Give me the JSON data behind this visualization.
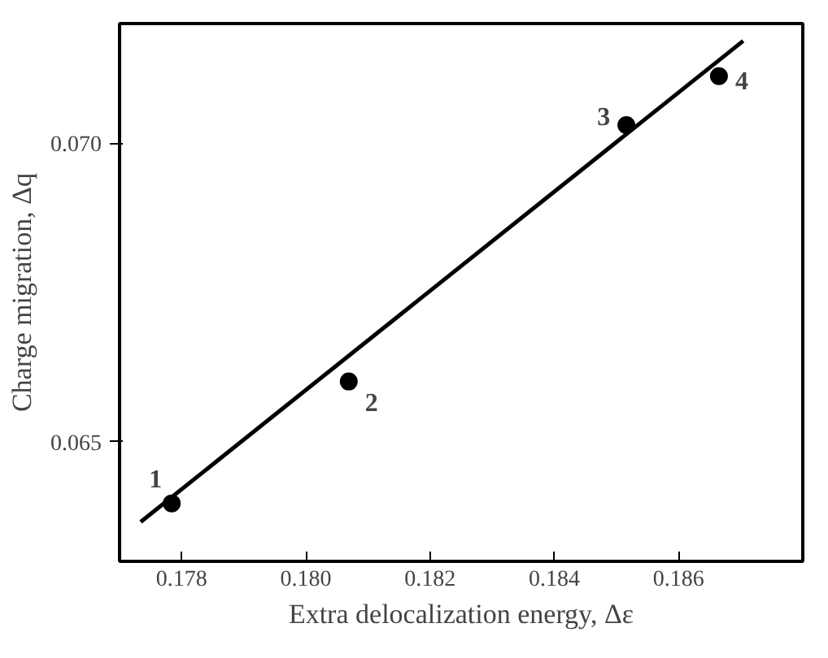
{
  "chart_data": {
    "type": "scatter",
    "xlabel": "Extra delocalization energy, Δε",
    "ylabel": "Charge migration, Δq",
    "series": [
      {
        "color": "#000000",
        "marker": "circle",
        "x": [
          0.17784,
          0.18069,
          0.18516,
          0.18665
        ],
        "values": [
          0.06397,
          0.06601,
          0.0703,
          0.07112
        ]
      },
      {
        "type": "line",
        "color": "#000000",
        "line_style": "solid",
        "x": [
          0.17734,
          0.18704
        ],
        "values": [
          0.06366,
          0.07171
        ]
      }
    ],
    "annotations": [
      {
        "text": "1",
        "x": 0.17784,
        "y": 0.06397
      },
      {
        "text": "2",
        "x": 0.18069,
        "y": 0.06601
      },
      {
        "text": "3",
        "x": 0.18516,
        "y": 0.0703
      },
      {
        "text": "4",
        "x": 0.18665,
        "y": 0.07112
      }
    ],
    "xlim": [
      0.177,
      0.188
    ],
    "ylim": [
      0.063,
      0.072
    ],
    "xticks": [
      0.178,
      {
        "value": 0.18,
        "label": "0.180"
      },
      0.182,
      0.184,
      0.186
    ],
    "yticks": [
      0.065,
      {
        "value": 0.07,
        "label": "0.070"
      }
    ],
    "grid": false
  }
}
